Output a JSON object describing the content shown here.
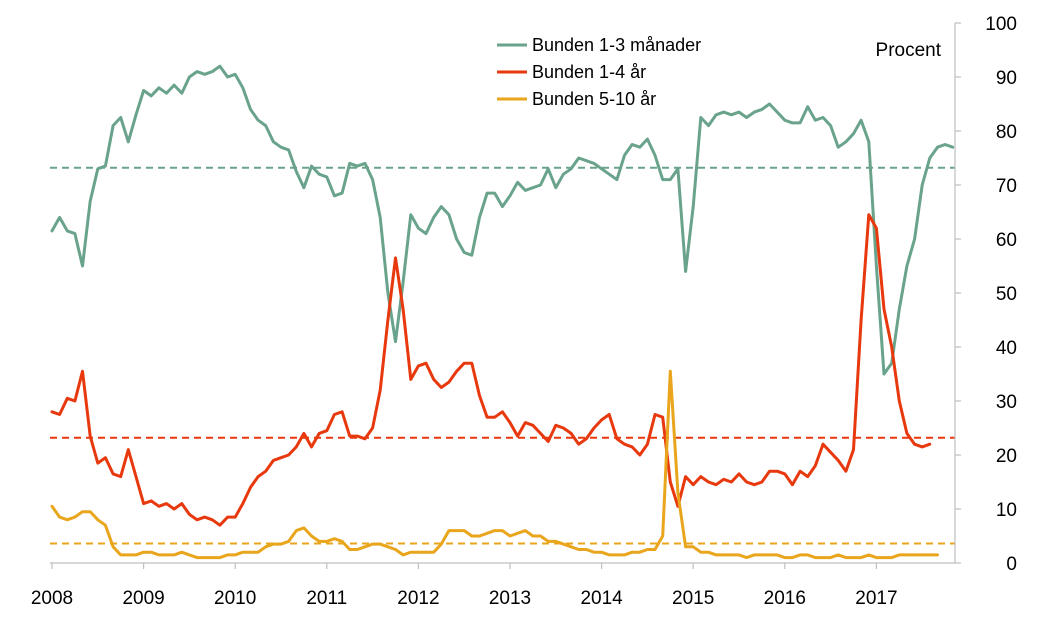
{
  "chart_data": {
    "type": "line",
    "unit_label": "Procent",
    "ylim": [
      0,
      100
    ],
    "y_ticks": [
      0,
      10,
      20,
      30,
      40,
      50,
      60,
      70,
      80,
      90,
      100
    ],
    "x_ticks": [
      "2008",
      "2009",
      "2010",
      "2011",
      "2012",
      "2013",
      "2014",
      "2015",
      "2016",
      "2017"
    ],
    "x_start": "2008-01",
    "x_end": "2017-09",
    "grid": false,
    "legend_position": "top-center",
    "series": [
      {
        "name": "Bunden 1-3 månader",
        "color": "#6aa38c",
        "average": 73.2,
        "values": [
          61.5,
          64,
          61.5,
          61,
          55,
          67,
          73,
          73.5,
          81,
          82.5,
          78,
          83,
          87.5,
          86.5,
          88,
          87,
          88.5,
          87,
          90,
          91,
          90.5,
          91,
          92,
          90,
          90.5,
          88,
          84,
          82,
          81,
          78,
          77,
          76.5,
          72.5,
          69.5,
          73.5,
          72,
          71.5,
          68,
          68.5,
          74,
          73.5,
          74,
          71,
          64,
          50,
          41,
          52,
          64.5,
          62,
          61,
          64,
          66,
          64.5,
          60,
          57.5,
          57,
          64,
          68.5,
          68.5,
          66,
          68,
          70.5,
          69,
          69.5,
          70,
          73,
          69.5,
          72,
          73,
          75,
          74.5,
          74,
          73,
          72,
          71,
          75.5,
          77.5,
          77,
          78.5,
          75.5,
          71,
          71,
          73,
          54,
          66,
          82.5,
          81,
          83,
          83.5,
          83,
          83.5,
          82.5,
          83.5,
          84,
          85,
          83.5,
          82,
          81.5,
          81.5,
          84.5,
          82,
          82.5,
          81,
          77,
          78,
          79.5,
          82,
          78,
          55,
          35,
          37,
          47,
          55,
          60,
          70,
          75,
          77,
          77.5,
          77
        ]
      },
      {
        "name": "Bunden 1-4 år",
        "color": "#e8380d",
        "average": 23.2,
        "values": [
          28,
          27.5,
          30.5,
          30,
          35.5,
          23.5,
          18.5,
          19.5,
          16.5,
          16,
          21,
          16,
          11,
          11.5,
          10.5,
          11,
          10,
          11,
          9,
          8,
          8.5,
          8,
          7,
          8.5,
          8.5,
          11,
          14,
          16,
          17,
          19,
          19.5,
          20,
          21.5,
          24,
          21.5,
          24,
          24.5,
          27.5,
          28,
          23.5,
          23.5,
          23,
          25,
          32,
          45,
          56.5,
          47,
          34,
          36.5,
          37,
          34,
          32.5,
          33.5,
          35.5,
          37,
          37,
          31,
          27,
          27,
          28,
          26,
          23.5,
          26,
          25.5,
          24,
          22.5,
          25.5,
          25,
          24,
          22,
          23,
          25,
          26.5,
          27.5,
          23,
          22,
          21.5,
          20,
          22,
          27.5,
          27,
          15,
          10.5,
          16,
          14.5,
          16,
          15,
          14.5,
          15.5,
          15,
          16.5,
          15,
          14.5,
          15,
          17,
          17,
          16.5,
          14.5,
          17,
          16,
          18,
          22,
          20.5,
          19,
          17,
          21,
          45,
          64.5,
          62,
          47,
          40,
          30,
          24,
          22,
          21.5,
          22
        ]
      },
      {
        "name": "Bunden 5-10 år",
        "color": "#e9a51c",
        "average": 3.6,
        "values": [
          10.5,
          8.5,
          8,
          8.5,
          9.5,
          9.5,
          8,
          7,
          3,
          1.5,
          1.5,
          1.5,
          2,
          2,
          1.5,
          1.5,
          1.5,
          2,
          1.5,
          1,
          1,
          1,
          1,
          1.5,
          1.5,
          2,
          2,
          2,
          3,
          3.5,
          3.5,
          4,
          6,
          6.5,
          5,
          4,
          4,
          4.5,
          4,
          2.5,
          2.5,
          3,
          3.5,
          3.5,
          3,
          2.5,
          1.5,
          2,
          2,
          2,
          2,
          3.5,
          6,
          6,
          6,
          5,
          5,
          5.5,
          6,
          6,
          5,
          5.5,
          6,
          5,
          5,
          4,
          4,
          3.5,
          3,
          2.5,
          2.5,
          2,
          2,
          1.5,
          1.5,
          1.5,
          2,
          2,
          2.5,
          2.5,
          5,
          35.5,
          13,
          3,
          3,
          2,
          2,
          1.5,
          1.5,
          1.5,
          1.5,
          1,
          1.5,
          1.5,
          1.5,
          1.5,
          1,
          1,
          1.5,
          1.5,
          1,
          1,
          1,
          1.5,
          1,
          1,
          1,
          1.5,
          1,
          1,
          1,
          1.5,
          1.5,
          1.5,
          1.5,
          1.5,
          1.5
        ]
      }
    ]
  }
}
